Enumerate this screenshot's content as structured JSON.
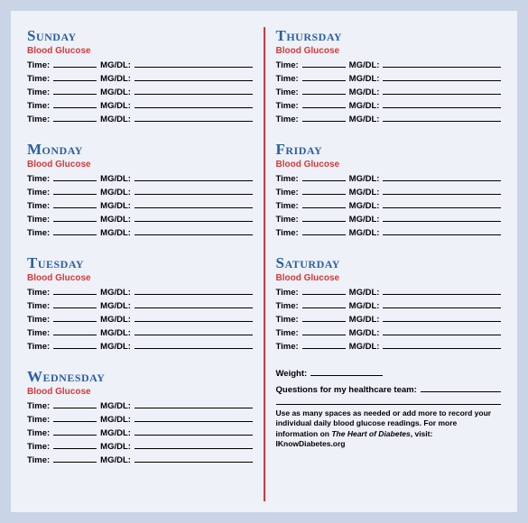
{
  "colors": {
    "page_bg": "#c9d4e6",
    "sheet_bg": "#eef1f8",
    "day_title": "#2a5fa0",
    "accent": "#d13a3a",
    "text": "#000000"
  },
  "typography": {
    "day_title_fontsize": 17,
    "subhead_fontsize": 10,
    "row_fontsize": 9.5,
    "footnote_fontsize": 8.5
  },
  "labels": {
    "subhead": "Blood Glucose",
    "time": "Time:",
    "mgdl": "MG/DL:",
    "weight": "Weight:",
    "questions": "Questions for my healthcare team:"
  },
  "left_days": [
    {
      "title": "Sunday",
      "rows": 5
    },
    {
      "title": "Monday",
      "rows": 5
    },
    {
      "title": "Tuesday",
      "rows": 5
    },
    {
      "title": "Wednesday",
      "rows": 5
    }
  ],
  "right_days": [
    {
      "title": "Thursday",
      "rows": 5
    },
    {
      "title": "Friday",
      "rows": 5
    },
    {
      "title": "Saturday",
      "rows": 5
    }
  ],
  "footnote": {
    "text_a": "Use as many spaces as needed or add more to record your individual daily blood glucose readings. For more information on ",
    "em": "The Heart of Diabetes",
    "text_b": ", visit: ",
    "link": "IKnowDiabetes.org"
  }
}
